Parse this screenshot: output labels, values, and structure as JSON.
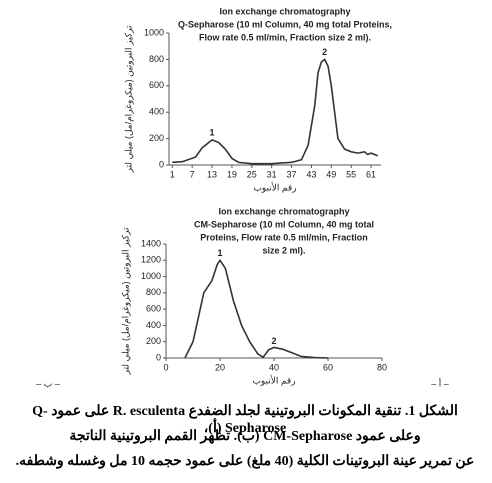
{
  "chart_data": [
    {
      "type": "line",
      "title": "Ion exchange chromatography",
      "subtitle": [
        "Q-Sepharose (10 ml Column, 40 mg total Proteins,",
        "Flow rate 0.5 ml/min, Fraction size 2 ml)."
      ],
      "x_label": "رقم الأنبوب",
      "y_label": "تركيز البروتين (ميكروغرام/مل) ميلي لتر",
      "xlim": [
        0,
        64
      ],
      "ylim": [
        0,
        1000
      ],
      "xticks": [
        1,
        7,
        13,
        19,
        25,
        31,
        37,
        43,
        49,
        55,
        61
      ],
      "yticks": [
        0,
        200,
        400,
        600,
        800,
        1000
      ],
      "x": [
        1,
        4,
        8,
        10,
        12,
        13,
        15,
        17,
        19,
        21,
        25,
        31,
        37,
        40,
        42,
        44,
        45,
        46,
        47,
        48,
        49,
        50,
        51,
        53,
        55,
        57,
        59,
        60,
        61,
        63
      ],
      "series": [
        {
          "name": "Q-Sepharose",
          "color": "#333333",
          "values": [
            20,
            25,
            60,
            130,
            170,
            190,
            170,
            120,
            50,
            20,
            10,
            10,
            20,
            40,
            150,
            450,
            700,
            780,
            800,
            750,
            600,
            400,
            200,
            120,
            100,
            90,
            100,
            80,
            90,
            70
          ]
        }
      ],
      "annotations": [
        {
          "text": "1",
          "x": 13,
          "y": 240
        },
        {
          "text": "2",
          "x": 47,
          "y": 850
        }
      ]
    },
    {
      "type": "line",
      "title": "Ion exchange chromatography",
      "subtitle": [
        "CM-Sepharose (10 ml Column, 40 mg total",
        "Proteins, Flow rate 0.5 ml/min, Fraction",
        "size 2 ml)."
      ],
      "x_label": "رقم الأنبوب",
      "y_label": "تركيز البروتين (ميكروغرام/مل) ميلي لتر",
      "xlim": [
        0,
        80
      ],
      "ylim": [
        0,
        1400
      ],
      "xticks": [
        0,
        20,
        40,
        60,
        80
      ],
      "yticks": [
        0,
        200,
        400,
        600,
        800,
        1000,
        1200,
        1400
      ],
      "x": [
        7,
        10,
        12,
        14,
        17,
        19,
        20,
        22,
        25,
        28,
        31,
        34,
        36,
        38,
        40,
        43,
        47,
        50,
        55,
        60
      ],
      "series": [
        {
          "name": "CM-Sepharose",
          "color": "#333333",
          "values": [
            0,
            200,
            500,
            800,
            950,
            1150,
            1200,
            1100,
            700,
            400,
            200,
            50,
            10,
            100,
            130,
            110,
            60,
            20,
            5,
            0
          ]
        }
      ],
      "annotations": [
        {
          "text": "1",
          "x": 20,
          "y": 1280
        },
        {
          "text": "2",
          "x": 40,
          "y": 200
        }
      ]
    }
  ],
  "panel_labels": [
    "– ب –",
    "– أ –"
  ],
  "caption": [
    "الشكل 1. تنقية المكونات البروتينية لجلد الضفدع R. esculenta على عمود Q-Sepharose (أ)،",
    "وعلى عمود CM-Sepharose (ب). تظهر القمم البروتينية الناتجة",
    "عن تمرير عينة البروتينات الكلية (40 ملغ) على عمود حجمه 10 مل وغسله وشطفه."
  ]
}
